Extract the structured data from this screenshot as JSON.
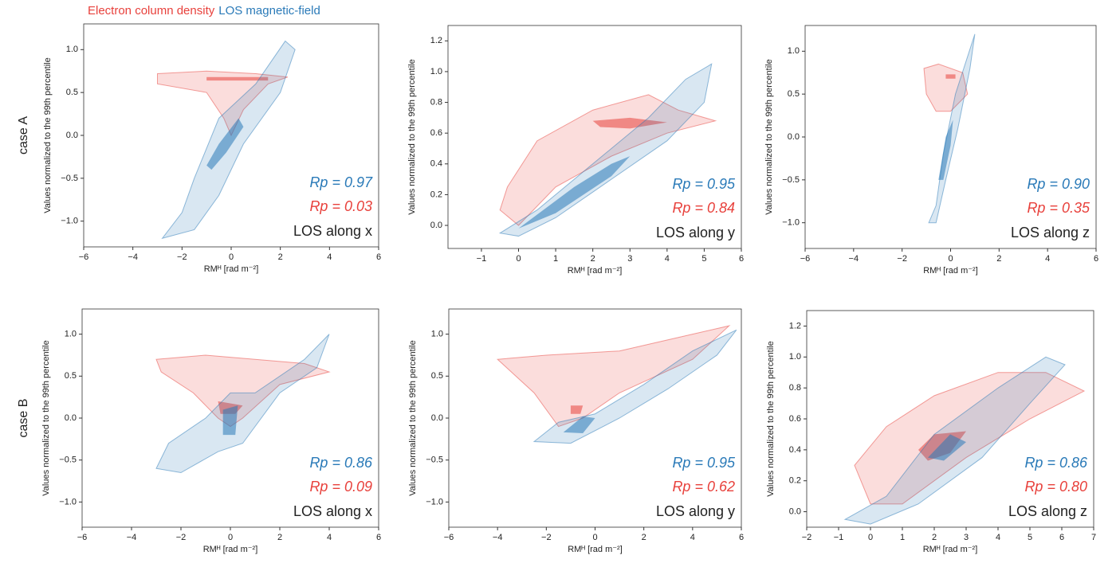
{
  "legend": [
    {
      "name": "Electron column density",
      "color": "#e8413c"
    },
    {
      "name": "LOS magnetic-field",
      "color": "#2a7ab8"
    }
  ],
  "row_labels": [
    "case A",
    "case B"
  ],
  "chart_data": [
    {
      "type": "contour",
      "annotation": "LOS along x",
      "xlabel": "RMᴴ [rad m⁻²]",
      "ylabel": "Values normalized to the 99th percentile",
      "xlim": [
        -6,
        6
      ],
      "xticks": [
        {
          "value": -6,
          "label": "−6"
        },
        {
          "value": -4,
          "label": "−4"
        },
        {
          "value": -2,
          "label": "−2"
        },
        0,
        2,
        4,
        6
      ],
      "ylim": [
        -1.3,
        1.3
      ],
      "yticks": [
        {
          "value": -1,
          "label": "−1.0"
        },
        {
          "value": -0.5,
          "label": "−0.5"
        },
        {
          "value": 0,
          "label": "0.0"
        },
        {
          "value": 0.5,
          "label": "0.5"
        },
        {
          "value": 1,
          "label": "1.0"
        }
      ],
      "series": [
        {
          "color": "#e8413c",
          "rp_label": "Rp = 0.03",
          "levels": [
            {
              "x": [
                -3,
                -1,
                1,
                2.3,
                1.5,
                0.5,
                0,
                -0.3,
                -1,
                -3
              ],
              "y": [
                0.72,
                0.75,
                0.72,
                0.68,
                0.6,
                0.3,
                0,
                0.2,
                0.5,
                0.6
              ]
            },
            {
              "x": [
                -1,
                1.5,
                1.5,
                -1
              ],
              "y": [
                0.68,
                0.68,
                0.64,
                0.64
              ]
            }
          ]
        },
        {
          "color": "#2a7ab8",
          "rp_label": "Rp = 0.97",
          "levels": [
            {
              "x": [
                -2.8,
                -2,
                -1.5,
                -0.5,
                1,
                2.2,
                2.6,
                2,
                0.5,
                -0.5,
                -1.5
              ],
              "y": [
                -1.2,
                -0.9,
                -0.5,
                0.2,
                0.6,
                1.1,
                1,
                0.5,
                -0.1,
                -0.7,
                -1.1
              ]
            },
            {
              "x": [
                -1,
                -0.5,
                0.3,
                0.5,
                -0.2,
                -0.8
              ],
              "y": [
                -0.35,
                -0.1,
                0.2,
                0.1,
                -0.2,
                -0.4
              ]
            }
          ]
        }
      ]
    },
    {
      "type": "contour",
      "annotation": "LOS along y",
      "xlabel": "RMᴴ [rad m⁻²]",
      "ylabel": "Values normalized to the 99th percentile",
      "xlim": [
        -1.9,
        6
      ],
      "xticks": [
        {
          "value": -1,
          "label": "−1"
        },
        0,
        1,
        2,
        3,
        4,
        5,
        6
      ],
      "ylim": [
        -0.15,
        1.3
      ],
      "yticks": [
        {
          "value": 0,
          "label": "0.0"
        },
        {
          "value": 0.2,
          "label": "0.2"
        },
        {
          "value": 0.4,
          "label": "0.4"
        },
        {
          "value": 0.6,
          "label": "0.6"
        },
        {
          "value": 0.8,
          "label": "0.8"
        },
        {
          "value": 1,
          "label": "1.0"
        },
        {
          "value": 1.2,
          "label": "1.2"
        }
      ],
      "series": [
        {
          "color": "#e8413c",
          "rp_label": "Rp = 0.84",
          "levels": [
            {
              "x": [
                -0.3,
                0.5,
                2,
                3.5,
                4.3,
                5.3,
                4,
                2.5,
                1,
                0,
                -0.5
              ],
              "y": [
                0.25,
                0.55,
                0.75,
                0.85,
                0.75,
                0.68,
                0.6,
                0.45,
                0.25,
                0,
                0.1
              ]
            },
            {
              "x": [
                2,
                3,
                4,
                3,
                2.2
              ],
              "y": [
                0.68,
                0.7,
                0.67,
                0.63,
                0.64
              ]
            }
          ]
        },
        {
          "color": "#2a7ab8",
          "rp_label": "Rp = 0.95",
          "levels": [
            {
              "x": [
                -0.5,
                0.5,
                2,
                3.5,
                4.5,
                5.2,
                5,
                4,
                2.5,
                1,
                0
              ],
              "y": [
                -0.05,
                0.1,
                0.4,
                0.7,
                0.95,
                1.05,
                0.8,
                0.55,
                0.3,
                0.05,
                -0.07
              ]
            },
            {
              "x": [
                0,
                1.5,
                2.5,
                3,
                2.5,
                1
              ],
              "y": [
                -0.02,
                0.25,
                0.4,
                0.45,
                0.32,
                0.08
              ]
            }
          ]
        }
      ]
    },
    {
      "type": "contour",
      "annotation": "LOS along z",
      "xlabel": "RMᴴ [rad m⁻²]",
      "ylabel": "Values normalized to the 99th percentile",
      "xlim": [
        -6,
        6
      ],
      "xticks": [
        {
          "value": -6,
          "label": "−6"
        },
        {
          "value": -4,
          "label": "−4"
        },
        {
          "value": -2,
          "label": "−2"
        },
        0,
        2,
        4,
        6
      ],
      "ylim": [
        -1.3,
        1.3
      ],
      "yticks": [
        {
          "value": -1,
          "label": "−1.0"
        },
        {
          "value": -0.5,
          "label": "−0.5"
        },
        {
          "value": 0,
          "label": "0.0"
        },
        {
          "value": 0.5,
          "label": "0.5"
        },
        {
          "value": 1,
          "label": "1.0"
        }
      ],
      "series": [
        {
          "color": "#e8413c",
          "rp_label": "Rp = 0.35",
          "levels": [
            {
              "x": [
                -1.1,
                -0.5,
                0.5,
                0.7,
                0,
                -0.6,
                -1
              ],
              "y": [
                0.8,
                0.85,
                0.75,
                0.5,
                0.3,
                0.3,
                0.5
              ]
            },
            {
              "x": [
                -0.2,
                0.2,
                0.2,
                -0.2
              ],
              "y": [
                0.73,
                0.73,
                0.68,
                0.68
              ]
            }
          ]
        },
        {
          "color": "#2a7ab8",
          "rp_label": "Rp = 0.90",
          "levels": [
            {
              "x": [
                -0.9,
                -0.6,
                -0.3,
                0.2,
                1,
                0.8,
                0.3,
                -0.2,
                -0.6
              ],
              "y": [
                -1,
                -0.8,
                -0.2,
                0.5,
                1.2,
                0.8,
                0.1,
                -0.5,
                -1
              ]
            },
            {
              "x": [
                -0.5,
                -0.2,
                0.1,
                0,
                -0.3
              ],
              "y": [
                -0.5,
                0,
                0.2,
                -0.1,
                -0.5
              ]
            }
          ]
        }
      ]
    },
    {
      "type": "contour",
      "annotation": "LOS along x",
      "xlabel": "RMᴴ [rad m⁻²]",
      "ylabel": "Values normalized to the 99th percentile",
      "xlim": [
        -6,
        6
      ],
      "xticks": [
        {
          "value": -6,
          "label": "−6"
        },
        {
          "value": -4,
          "label": "−4"
        },
        {
          "value": -2,
          "label": "−2"
        },
        0,
        2,
        4,
        6
      ],
      "ylim": [
        -1.3,
        1.3
      ],
      "yticks": [
        {
          "value": -1,
          "label": "−1.0"
        },
        {
          "value": -0.5,
          "label": "−0.5"
        },
        {
          "value": 0,
          "label": "0.0"
        },
        {
          "value": 0.5,
          "label": "0.5"
        },
        {
          "value": 1,
          "label": "1.0"
        }
      ],
      "series": [
        {
          "color": "#e8413c",
          "rp_label": "Rp = 0.09",
          "levels": [
            {
              "x": [
                -3,
                -1,
                1,
                3,
                4,
                2,
                0.5,
                0,
                -0.5,
                -1.5,
                -2.8
              ],
              "y": [
                0.7,
                0.75,
                0.7,
                0.65,
                0.55,
                0.4,
                0,
                -0.1,
                0,
                0.3,
                0.55
              ]
            },
            {
              "x": [
                -0.5,
                0.5,
                0.2,
                -0.4
              ],
              "y": [
                0.2,
                0.15,
                0.05,
                0.05
              ]
            }
          ]
        },
        {
          "color": "#2a7ab8",
          "rp_label": "Rp = 0.86",
          "levels": [
            {
              "x": [
                -3,
                -2.5,
                -1,
                0,
                1,
                3,
                4,
                3.5,
                2,
                0.5,
                -0.5,
                -2
              ],
              "y": [
                -0.6,
                -0.3,
                0,
                0.3,
                0.3,
                0.7,
                1,
                0.6,
                0.3,
                -0.3,
                -0.4,
                -0.65
              ]
            },
            {
              "x": [
                -0.3,
                -0.3,
                0.3,
                0.2
              ],
              "y": [
                -0.2,
                0.1,
                0.15,
                -0.2
              ]
            }
          ]
        }
      ]
    },
    {
      "type": "contour",
      "annotation": "LOS along y",
      "xlabel": "RMᴴ [rad m⁻²]",
      "ylabel": "Values normalized to the 99th percentile",
      "xlim": [
        -6,
        6
      ],
      "xticks": [
        {
          "value": -6,
          "label": "−6"
        },
        {
          "value": -4,
          "label": "−4"
        },
        {
          "value": -2,
          "label": "−2"
        },
        0,
        2,
        4,
        6
      ],
      "ylim": [
        -1.3,
        1.3
      ],
      "yticks": [
        {
          "value": -1,
          "label": "−1.0"
        },
        {
          "value": -0.5,
          "label": "−0.5"
        },
        {
          "value": 0,
          "label": "0.0"
        },
        {
          "value": 0.5,
          "label": "0.5"
        },
        {
          "value": 1,
          "label": "1.0"
        }
      ],
      "series": [
        {
          "color": "#e8413c",
          "rp_label": "Rp = 0.62",
          "levels": [
            {
              "x": [
                -4,
                -2,
                1,
                4,
                5.5,
                4,
                1,
                -0.5,
                -1.5,
                -2.5
              ],
              "y": [
                0.7,
                0.75,
                0.8,
                1,
                1.1,
                0.7,
                0.3,
                0,
                -0.1,
                0.3
              ]
            },
            {
              "x": [
                -1,
                -0.5,
                -0.6,
                -1
              ],
              "y": [
                0.15,
                0.15,
                0.05,
                0.05
              ]
            }
          ]
        },
        {
          "color": "#2a7ab8",
          "rp_label": "Rp = 0.95",
          "levels": [
            {
              "x": [
                -2.5,
                -1.5,
                0,
                2,
                4,
                5.8,
                5,
                3,
                1,
                -1
              ],
              "y": [
                -0.28,
                -0.05,
                0.05,
                0.4,
                0.8,
                1.05,
                0.75,
                0.35,
                0,
                -0.3
              ]
            },
            {
              "x": [
                -1.3,
                -0.5,
                0,
                -0.5
              ],
              "y": [
                -0.17,
                0.02,
                0,
                -0.18
              ]
            }
          ]
        }
      ]
    },
    {
      "type": "contour",
      "annotation": "LOS along z",
      "xlabel": "RMᴴ [rad m⁻²]",
      "ylabel": "Values normalized to the 99th percentile",
      "xlim": [
        -2,
        7
      ],
      "xticks": [
        {
          "value": -2,
          "label": "−2"
        },
        {
          "value": -1,
          "label": "−1"
        },
        0,
        1,
        2,
        3,
        4,
        5,
        6,
        7
      ],
      "ylim": [
        -0.1,
        1.3
      ],
      "yticks": [
        {
          "value": 0,
          "label": "0.0"
        },
        {
          "value": 0.2,
          "label": "0.2"
        },
        {
          "value": 0.4,
          "label": "0.4"
        },
        {
          "value": 0.6,
          "label": "0.6"
        },
        {
          "value": 0.8,
          "label": "0.8"
        },
        {
          "value": 1,
          "label": "1.0"
        },
        {
          "value": 1.2,
          "label": "1.2"
        }
      ],
      "series": [
        {
          "color": "#e8413c",
          "rp_label": "Rp = 0.80",
          "levels": [
            {
              "x": [
                -0.5,
                0.5,
                2,
                4,
                5.5,
                6.7,
                5,
                3,
                1,
                0
              ],
              "y": [
                0.3,
                0.55,
                0.75,
                0.9,
                0.9,
                0.78,
                0.6,
                0.35,
                0.05,
                0.05
              ]
            },
            {
              "x": [
                1.5,
                2,
                3,
                2.5,
                1.8
              ],
              "y": [
                0.4,
                0.5,
                0.52,
                0.38,
                0.33
              ]
            }
          ]
        },
        {
          "color": "#2a7ab8",
          "rp_label": "Rp = 0.86",
          "levels": [
            {
              "x": [
                -0.8,
                0.5,
                2,
                4,
                5.5,
                6.1,
                5,
                3.5,
                1.5,
                0
              ],
              "y": [
                -0.05,
                0.1,
                0.5,
                0.8,
                1,
                0.95,
                0.7,
                0.35,
                0.05,
                -0.08
              ]
            },
            {
              "x": [
                1.8,
                2.5,
                3,
                2.3
              ],
              "y": [
                0.35,
                0.5,
                0.45,
                0.33
              ]
            }
          ]
        }
      ]
    }
  ]
}
